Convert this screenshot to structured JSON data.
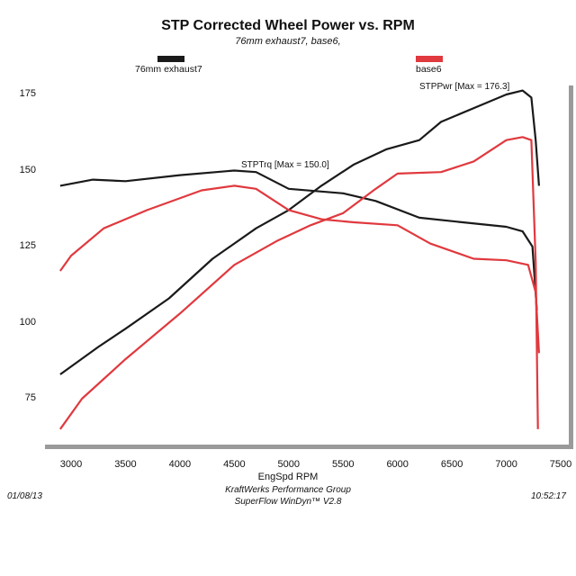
{
  "chart_data": {
    "type": "line",
    "title": "STP Corrected Wheel Power vs. RPM",
    "subtitle": "76mm exhaust7, base6,",
    "xlabel": "EngSpd  RPM",
    "ylabel": "",
    "xlim": [
      2750,
      7500
    ],
    "ylim": [
      65,
      180
    ],
    "x_ticks": [
      "3000",
      "3500",
      "4000",
      "4500",
      "5000",
      "5500",
      "6000",
      "6500",
      "7000",
      "7500"
    ],
    "y_ticks": [
      "75",
      "100",
      "125",
      "150",
      "175"
    ],
    "grid": false,
    "legend": [
      {
        "name": "76mm exhaust7",
        "color": "#1a1a1a"
      },
      {
        "name": "base6",
        "color": "#e0393e"
      }
    ],
    "annotations": [
      "STPPwr [Max = 176.3]",
      "STPTrq [Max = 150.0]"
    ],
    "series": [
      {
        "name": "76mm exhaust7",
        "measure": "STPPwr",
        "color": "#1a1a1a",
        "x": [
          2900,
          3250,
          3500,
          3900,
          4300,
          4700,
          5000,
          5300,
          5600,
          5900,
          6200,
          6400,
          6800,
          7000,
          7150,
          7230,
          7270,
          7300
        ],
        "y": [
          83,
          92,
          98,
          108,
          121,
          131,
          137,
          145,
          152,
          157,
          160,
          166,
          172,
          175,
          176.3,
          174,
          160,
          145
        ]
      },
      {
        "name": "76mm exhaust7",
        "measure": "STPTrq",
        "color": "#1a1a1a",
        "x": [
          2900,
          3200,
          3500,
          4000,
          4500,
          4700,
          5000,
          5500,
          5800,
          6200,
          6600,
          7000,
          7150,
          7240,
          7280
        ],
        "y": [
          145,
          147,
          146.5,
          148.5,
          150,
          149.5,
          144,
          142.5,
          140,
          134.5,
          133,
          131.5,
          130,
          125,
          104
        ]
      },
      {
        "name": "base6",
        "measure": "STPPwr",
        "color": "#e0393e",
        "x": [
          2900,
          3100,
          3500,
          4000,
          4500,
          4900,
          5200,
          5500,
          5800,
          6000,
          6400,
          6700,
          7000,
          7150,
          7230,
          7270,
          7290
        ],
        "y": [
          65,
          75,
          88,
          103,
          119,
          127,
          132,
          136,
          144,
          149,
          149.5,
          153,
          160,
          161,
          160,
          120,
          65
        ]
      },
      {
        "name": "base6",
        "measure": "STPTrq",
        "color": "#e0393e",
        "x": [
          2900,
          3000,
          3300,
          3700,
          4200,
          4500,
          4700,
          5000,
          5300,
          5600,
          6000,
          6300,
          6700,
          7000,
          7200,
          7270,
          7300
        ],
        "y": [
          117,
          122,
          131,
          137,
          143.5,
          145,
          144,
          137,
          134,
          133,
          132,
          126,
          121,
          120.5,
          119,
          110,
          90
        ]
      }
    ]
  },
  "footer": {
    "company": "KraftWerks Performance Group",
    "software": "SuperFlow WinDyn™ V2.8",
    "date": "01/08/13",
    "time": "10:52:17"
  }
}
